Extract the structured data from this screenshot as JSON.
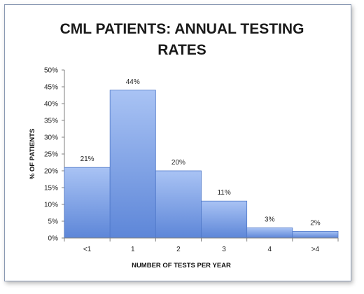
{
  "chart_data": {
    "type": "bar",
    "title_line1": "CML PATIENTS: ANNUAL TESTING",
    "title_line2": "RATES",
    "xlabel": "NUMBER  OF TESTS PER YEAR",
    "ylabel": "% OF PATIENTS",
    "categories": [
      "<1",
      "1",
      "2",
      "3",
      "4",
      ">4"
    ],
    "values": [
      21,
      44,
      20,
      11,
      3,
      2
    ],
    "data_labels": [
      "21%",
      "44%",
      "20%",
      "11%",
      "3%",
      "2%"
    ],
    "ylim": [
      0,
      50
    ],
    "yticks": [
      "0%",
      "5%",
      "10%",
      "15%",
      "20%",
      "25%",
      "30%",
      "35%",
      "40%",
      "45%",
      "50%"
    ],
    "colors": {
      "bar_top": "#a9c3f4",
      "bar_bottom": "#5d86d8",
      "bar_edge": "#4f78c9"
    },
    "grid": false,
    "legend": "none"
  }
}
